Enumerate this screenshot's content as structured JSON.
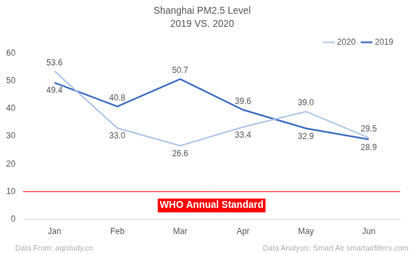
{
  "chart_data": {
    "type": "line",
    "title": "Shanghai PM2.5 Level",
    "subtitle": "2019 VS. 2020",
    "categories": [
      "Jan",
      "Feb",
      "Mar",
      "Apr",
      "May",
      "Jun"
    ],
    "series": [
      {
        "name": "2020",
        "color": "#a9c4e8",
        "values": [
          53.6,
          33.0,
          26.6,
          33.4,
          39.0,
          29.5
        ],
        "value_labels": [
          "53.6",
          "33.0",
          "26.6",
          "33.4",
          "39.0",
          "29.5"
        ]
      },
      {
        "name": "2019",
        "color": "#4472c4",
        "values": [
          49.4,
          40.8,
          50.7,
          39.6,
          32.9,
          28.9
        ],
        "value_labels": [
          "49.4",
          "40.8",
          "50.7",
          "39.6",
          "32.9",
          "28.9"
        ]
      }
    ],
    "ylim": [
      0,
      60
    ],
    "yticks": [
      0,
      10,
      20,
      30,
      40,
      50,
      60
    ],
    "grid": false,
    "legend": "top-right",
    "data_labels": true,
    "reference_lines": [
      {
        "value": 10,
        "label": "WHO Annual Standard",
        "color": "#ff0000"
      }
    ],
    "footnotes": [
      "Data From: aqistudy.cn",
      "Data Analysis: Smart Air smartairfilters.com"
    ]
  }
}
